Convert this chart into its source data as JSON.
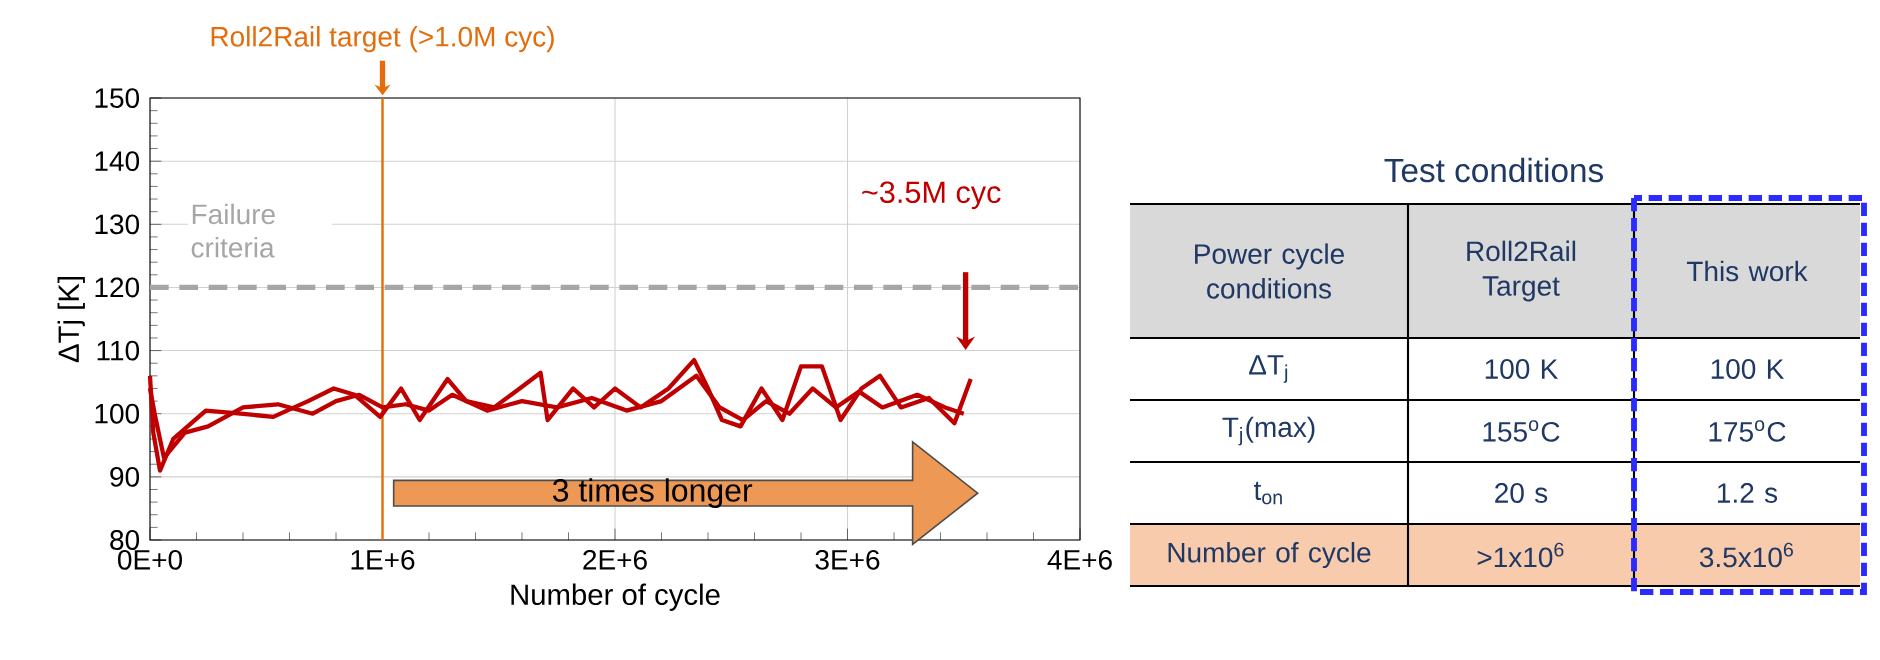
{
  "chart_data": [
    {
      "type": "line",
      "xlabel": "Number of cycle",
      "ylabel": "ΔTj [K]",
      "xlim": [
        0,
        4000000
      ],
      "ylim": [
        80,
        150
      ],
      "xticks": [
        {
          "value": 0,
          "label": "0E+0"
        },
        {
          "value": 1000000,
          "label": "1E+6"
        },
        {
          "value": 2000000,
          "label": "2E+6"
        },
        {
          "value": 3000000,
          "label": "3E+6"
        },
        {
          "value": 4000000,
          "label": "4E+6"
        }
      ],
      "yticks": [
        80,
        90,
        100,
        110,
        120,
        130,
        140,
        150
      ],
      "grid": true,
      "line_style": "solid",
      "series": [
        {
          "color": "#c00000",
          "x": [
            0,
            14000,
            43000,
            100000,
            240000,
            390000,
            530000,
            680000,
            790000,
            880000,
            990000,
            1080000,
            1160000,
            1280000,
            1360000,
            1480000,
            1590000,
            1680000,
            1710000,
            1820000,
            1910000,
            2000000,
            2110000,
            2230000,
            2340000,
            2400000,
            2460000,
            2540000,
            2630000,
            2720000,
            2800000,
            2890000,
            2970000,
            3060000,
            3140000,
            3230000,
            3350000,
            3460000,
            3530000
          ],
          "values": [
            106,
            97,
            91,
            96,
            100.5,
            100,
            99.5,
            102,
            104,
            103,
            99.5,
            104,
            99,
            105.5,
            102,
            101,
            104,
            106.5,
            99,
            104,
            101,
            104,
            101,
            104,
            108.5,
            104,
            99,
            98,
            104,
            99,
            107.5,
            107.5,
            99,
            104,
            106,
            101,
            102.5,
            98.5,
            105.5
          ]
        },
        {
          "color": "#c00000",
          "x": [
            0,
            20000,
            60000,
            150000,
            250000,
            400000,
            550000,
            700000,
            800000,
            900000,
            1000000,
            1100000,
            1200000,
            1300000,
            1450000,
            1600000,
            1750000,
            1900000,
            2050000,
            2200000,
            2350000,
            2450000,
            2550000,
            2650000,
            2750000,
            2850000,
            2950000,
            3050000,
            3150000,
            3300000,
            3420000,
            3500000
          ],
          "values": [
            104,
            100,
            93,
            97,
            98,
            101,
            101.5,
            100,
            102,
            103,
            101,
            101.5,
            100.5,
            103,
            100.5,
            102,
            101,
            102.5,
            100.5,
            102,
            106,
            101,
            99,
            102,
            100,
            104,
            101,
            103.5,
            101,
            103,
            101,
            100
          ]
        }
      ],
      "ref_lines": [
        {
          "axis": "x",
          "value": 1000000,
          "label": "Roll2Rail target (>1.0M cyc)",
          "color": "#e46c0a",
          "line_style": "solid"
        },
        {
          "axis": "y",
          "value": 120,
          "label": "Failure criteria",
          "color": "#a6a6a6",
          "line_style": "dashed"
        }
      ],
      "annotations": [
        "~3.5M cyc",
        "3 times longer"
      ]
    },
    {
      "type": "other",
      "title": "Test conditions",
      "annotations": [
        "Power cycle conditions",
        "Roll2Rail Target",
        "This work",
        "ΔT$_{j}$",
        "100 K",
        "100 K",
        "T$_{j}$(max)",
        "155$^{o}$C",
        "175$^{o}$C",
        "t$_{on}$",
        "20 s",
        "1.2 s",
        "Number of cycle",
        ">1x10$^{6}$",
        "3.5x10$^{6}$"
      ]
    }
  ]
}
